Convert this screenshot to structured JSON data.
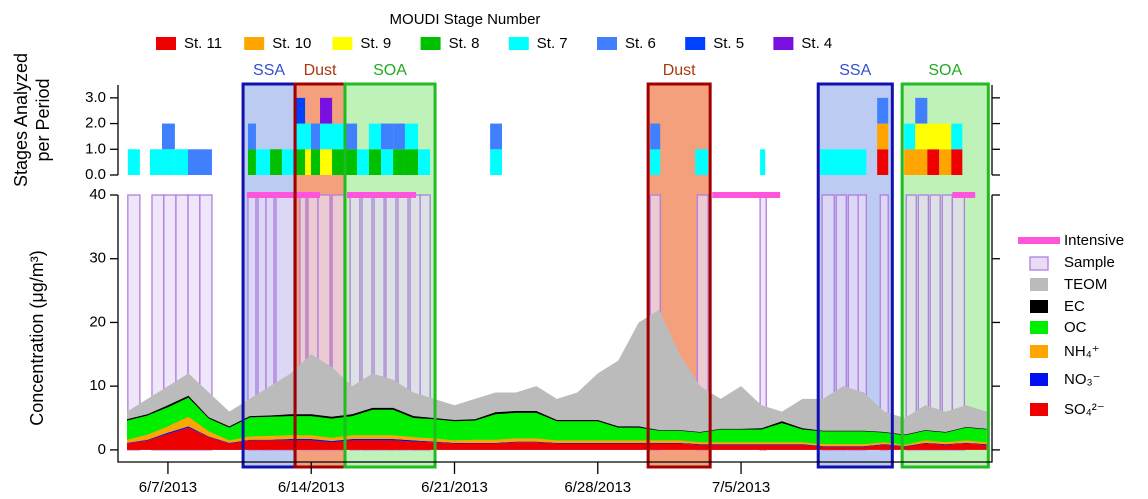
{
  "chart_data": {
    "type": "timeseries",
    "xlim": [
      4.56,
      47.26
    ],
    "xticks": [
      {
        "value": 7,
        "label": "6/7/2013"
      },
      {
        "value": 14,
        "label": "6/14/2013"
      },
      {
        "value": 21,
        "label": "6/21/2013"
      },
      {
        "value": 28,
        "label": "6/28/2013"
      },
      {
        "value": 35,
        "label": "7/5/2013"
      }
    ],
    "periods": [
      {
        "label": "SSA",
        "color": "#1010b0",
        "fill": "#bccbf2",
        "text_color": "#3050d0",
        "start": 10.67,
        "end": 13.21
      },
      {
        "label": "Dust",
        "color": "#a00000",
        "fill": "#f5a07c",
        "text_color": "#a83a10",
        "start": 13.21,
        "end": 15.65
      },
      {
        "label": "SOA",
        "color": "#22bb22",
        "fill": "#bff2b8",
        "text_color": "#22aa22",
        "start": 15.65,
        "end": 20.05
      },
      {
        "label": "Dust",
        "color": "#a00000",
        "fill": "#f5a07c",
        "text_color": "#a83a10",
        "start": 30.46,
        "end": 33.49
      },
      {
        "label": "SSA",
        "color": "#1010b0",
        "fill": "#bccbf2",
        "text_color": "#3050d0",
        "start": 38.77,
        "end": 42.39
      },
      {
        "label": "SOA",
        "color": "#22bb22",
        "fill": "#bff2b8",
        "text_color": "#22aa22",
        "start": 42.87,
        "end": 47.08
      }
    ],
    "top": {
      "legend_title": "MOUDI Stage Number",
      "ylabel": [
        "Stages Analyzed",
        "per Period"
      ],
      "ylim": [
        0,
        3.5
      ],
      "yticks": [
        {
          "value": 0,
          "label": "0.0"
        },
        {
          "value": 1,
          "label": "1.0"
        },
        {
          "value": 2,
          "label": "2.0"
        },
        {
          "value": 3,
          "label": "3.0"
        }
      ],
      "stages": [
        {
          "name": "St. 11",
          "color": "#ee0000"
        },
        {
          "name": "St. 10",
          "color": "#ffa500"
        },
        {
          "name": "St. 9",
          "color": "#ffff00"
        },
        {
          "name": "St. 8",
          "color": "#00c000"
        },
        {
          "name": "St. 7",
          "color": "#00ffff"
        },
        {
          "name": "St. 6",
          "color": "#4080ff"
        },
        {
          "name": "St. 5",
          "color": "#0040ff"
        },
        {
          "name": "St. 4",
          "color": "#7a10e0"
        }
      ],
      "analyses": [
        {
          "start": 5.04,
          "end": 5.63,
          "stages": [
            4
          ],
          "values": [
            1
          ]
        },
        {
          "start": 6.12,
          "end": 6.71,
          "stages": [
            4
          ],
          "values": [
            1
          ]
        },
        {
          "start": 6.71,
          "end": 7.34,
          "stages": [
            4,
            5
          ],
          "values": [
            1,
            1
          ]
        },
        {
          "start": 7.34,
          "end": 7.98,
          "stages": [
            4
          ],
          "values": [
            1
          ]
        },
        {
          "start": 7.98,
          "end": 9.15,
          "stages": [
            5
          ],
          "values": [
            1
          ]
        },
        {
          "start": 10.91,
          "end": 11.3,
          "stages": [
            3,
            5
          ],
          "values": [
            1,
            1
          ]
        },
        {
          "start": 11.3,
          "end": 11.99,
          "stages": [
            4
          ],
          "values": [
            1
          ]
        },
        {
          "start": 11.99,
          "end": 12.57,
          "stages": [
            3
          ],
          "values": [
            1
          ]
        },
        {
          "start": 12.57,
          "end": 13.26,
          "stages": [
            4
          ],
          "values": [
            1
          ]
        },
        {
          "start": 13.26,
          "end": 13.7,
          "stages": [
            3,
            4,
            6
          ],
          "values": [
            1,
            1,
            1
          ]
        },
        {
          "start": 13.7,
          "end": 13.99,
          "stages": [
            2,
            4
          ],
          "values": [
            1,
            1
          ]
        },
        {
          "start": 13.99,
          "end": 14.43,
          "stages": [
            3,
            5
          ],
          "values": [
            1,
            1
          ]
        },
        {
          "start": 14.43,
          "end": 15.02,
          "stages": [
            2,
            4,
            7
          ],
          "values": [
            1,
            1,
            1
          ]
        },
        {
          "start": 15.02,
          "end": 15.65,
          "stages": [
            3,
            4
          ],
          "values": [
            1,
            1
          ]
        },
        {
          "start": 15.65,
          "end": 16.24,
          "stages": [
            3,
            5
          ],
          "values": [
            1,
            1
          ]
        },
        {
          "start": 16.24,
          "end": 16.82,
          "stages": [
            4
          ],
          "values": [
            1
          ]
        },
        {
          "start": 16.82,
          "end": 17.41,
          "stages": [
            3,
            4
          ],
          "values": [
            1,
            1
          ]
        },
        {
          "start": 17.41,
          "end": 18.0,
          "stages": [
            4,
            5
          ],
          "values": [
            1,
            1
          ]
        },
        {
          "start": 18.0,
          "end": 18.58,
          "stages": [
            3,
            5
          ],
          "values": [
            1,
            1
          ]
        },
        {
          "start": 18.58,
          "end": 19.22,
          "stages": [
            3,
            4
          ],
          "values": [
            1,
            1
          ]
        },
        {
          "start": 19.22,
          "end": 19.81,
          "stages": [
            4
          ],
          "values": [
            1
          ]
        },
        {
          "start": 22.74,
          "end": 23.32,
          "stages": [
            4,
            5
          ],
          "values": [
            1,
            1
          ]
        },
        {
          "start": 30.56,
          "end": 31.05,
          "stages": [
            4,
            5
          ],
          "values": [
            1,
            1
          ]
        },
        {
          "start": 32.76,
          "end": 33.39,
          "stages": [
            4
          ],
          "values": [
            1
          ]
        },
        {
          "start": 35.93,
          "end": 36.18,
          "stages": [
            4
          ],
          "values": [
            1
          ]
        },
        {
          "start": 38.87,
          "end": 41.12,
          "stages": [
            4
          ],
          "values": [
            1
          ]
        },
        {
          "start": 41.65,
          "end": 42.19,
          "stages": [
            0,
            1,
            5
          ],
          "values": [
            1,
            1,
            1
          ]
        },
        {
          "start": 42.97,
          "end": 43.51,
          "stages": [
            1,
            4
          ],
          "values": [
            1,
            1
          ]
        },
        {
          "start": 43.51,
          "end": 44.1,
          "stages": [
            1,
            2,
            5
          ],
          "values": [
            1,
            1,
            1
          ]
        },
        {
          "start": 44.1,
          "end": 44.68,
          "stages": [
            0,
            2
          ],
          "values": [
            1,
            1
          ]
        },
        {
          "start": 44.68,
          "end": 45.27,
          "stages": [
            1,
            2
          ],
          "values": [
            1,
            1
          ]
        },
        {
          "start": 45.27,
          "end": 45.81,
          "stages": [
            0,
            4
          ],
          "values": [
            1,
            1
          ]
        }
      ]
    },
    "bottom": {
      "ylabel": "Concentration (μg/m³)",
      "ylim": [
        -1.9,
        40
      ],
      "yticks": [
        0,
        10,
        20,
        30,
        40
      ],
      "x": [
        5,
        6,
        7,
        8,
        9,
        10,
        11,
        12,
        13,
        14,
        15,
        16,
        17,
        18,
        19,
        20,
        21,
        22,
        23,
        24,
        25,
        26,
        27,
        28,
        29,
        30,
        31,
        32,
        33,
        34,
        35,
        36,
        37,
        38,
        39,
        40,
        41,
        42,
        43,
        44,
        45,
        46,
        47
      ],
      "intensive": {
        "name": "Intensive",
        "color": "#ff55dd",
        "start": [
          10.86,
          15.75,
          33.59,
          45.32
        ],
        "end": [
          14.43,
          19.12,
          36.91,
          46.44
        ],
        "values": [
          40,
          40,
          40,
          40
        ]
      },
      "samples": {
        "name": "Sample",
        "color": "#b07ee0",
        "fill": "#e8dcf6",
        "start": [
          5.04,
          6.22,
          6.8,
          7.39,
          7.98,
          8.56,
          10.91,
          11.4,
          11.79,
          12.28,
          13.45,
          13.84,
          14.33,
          15.02,
          15.9,
          16.48,
          17.07,
          17.65,
          18.24,
          18.83,
          19.32,
          30.56,
          32.86,
          35.93,
          38.96,
          39.65,
          40.24,
          40.72,
          41.8,
          43.07,
          43.66,
          44.24,
          44.83,
          45.32
        ],
        "end": [
          5.63,
          6.8,
          7.39,
          7.98,
          8.56,
          9.15,
          11.3,
          11.79,
          12.18,
          13.16,
          13.74,
          14.33,
          14.92,
          15.6,
          16.38,
          16.97,
          17.56,
          18.14,
          18.73,
          19.32,
          19.81,
          31.05,
          33.39,
          36.23,
          39.55,
          40.14,
          40.72,
          41.12,
          42.19,
          43.56,
          44.15,
          44.73,
          45.32,
          45.91
        ],
        "values": [
          40,
          40,
          40,
          40,
          40,
          40,
          40,
          40,
          40,
          40,
          40,
          40,
          40,
          40,
          40,
          40,
          40,
          40,
          40,
          40,
          40,
          40,
          40,
          40,
          40,
          40,
          40,
          40,
          40,
          40,
          40,
          40,
          40,
          40
        ]
      },
      "teom": {
        "name": "TEOM",
        "color": "#bbbbbb",
        "values": [
          6,
          8,
          10,
          12,
          9,
          6,
          8,
          10,
          12,
          15,
          13,
          10,
          12,
          11,
          9,
          8,
          7,
          8,
          9,
          9,
          10,
          8,
          9,
          12,
          14,
          20,
          22,
          15,
          10,
          8,
          10,
          7,
          6,
          8,
          8,
          10,
          9,
          6,
          5,
          7,
          6,
          7,
          6
        ]
      },
      "series": [
        {
          "name": "SO₄²⁻",
          "color": "#ee0000",
          "values": [
            1,
            1.5,
            2.5,
            3.5,
            2,
            1,
            1.5,
            1.5,
            1.5,
            1.5,
            1.2,
            1.5,
            1.5,
            1.5,
            1.3,
            1.2,
            1,
            1,
            1,
            1.2,
            1.2,
            1,
            1,
            1,
            1,
            1,
            1,
            1,
            0.8,
            0.8,
            0.8,
            0.8,
            0.8,
            0.8,
            0.5,
            0.5,
            0.5,
            0.8,
            0.5,
            1,
            0.8,
            1,
            0.8
          ]
        },
        {
          "name": "NO₃⁻",
          "color": "#0010ee",
          "values": [
            0.1,
            0.1,
            0.2,
            0.2,
            0.1,
            0.1,
            0.1,
            0.1,
            0.2,
            0.2,
            0.2,
            0.2,
            0.2,
            0.2,
            0.2,
            0.1,
            0.1,
            0.1,
            0.1,
            0.1,
            0.1,
            0.1,
            0.1,
            0.1,
            0.1,
            0.1,
            0.1,
            0.1,
            0.1,
            0.1,
            0.1,
            0.1,
            0.1,
            0.1,
            0.1,
            0.1,
            0.1,
            0.1,
            0.1,
            0.1,
            0.1,
            0.1,
            0.1
          ]
        },
        {
          "name": "NH₄⁺",
          "color": "#ffa500",
          "values": [
            0.5,
            0.8,
            1,
            1.5,
            0.8,
            0.4,
            0.5,
            0.6,
            0.6,
            0.6,
            0.5,
            0.6,
            0.6,
            0.6,
            0.5,
            0.5,
            0.4,
            0.5,
            0.5,
            0.5,
            0.5,
            0.4,
            0.4,
            0.4,
            0.4,
            0.4,
            0.4,
            0.4,
            0.3,
            0.3,
            0.3,
            0.3,
            0.3,
            0.3,
            0.3,
            0.3,
            0.3,
            0.3,
            0.2,
            0.4,
            0.3,
            0.4,
            0.3
          ]
        },
        {
          "name": "OC",
          "color": "#00ee00",
          "values": [
            3,
            3,
            3,
            3,
            2,
            2,
            3,
            3,
            3,
            3,
            3,
            3,
            4,
            4,
            3,
            3,
            3,
            3,
            4,
            4,
            4,
            3,
            3,
            3,
            2,
            2,
            1.5,
            1.5,
            1.5,
            2,
            2,
            2,
            3,
            2,
            2,
            2,
            2,
            1.5,
            1.5,
            1.5,
            1.5,
            2,
            2
          ]
        },
        {
          "name": "EC",
          "color": "#000000",
          "values": [
            0.2,
            0.2,
            0.3,
            0.3,
            0.2,
            0.2,
            0.2,
            0.2,
            0.3,
            0.3,
            0.3,
            0.3,
            0.3,
            0.3,
            0.3,
            0.2,
            0.2,
            0.2,
            0.3,
            0.3,
            0.3,
            0.2,
            0.2,
            0.2,
            0.2,
            0.2,
            0.1,
            0.1,
            0.1,
            0.1,
            0.1,
            0.2,
            0.3,
            0.2,
            0.1,
            0.1,
            0.1,
            0.1,
            0.1,
            0.1,
            0.1,
            0.1,
            0.1
          ]
        }
      ]
    }
  }
}
